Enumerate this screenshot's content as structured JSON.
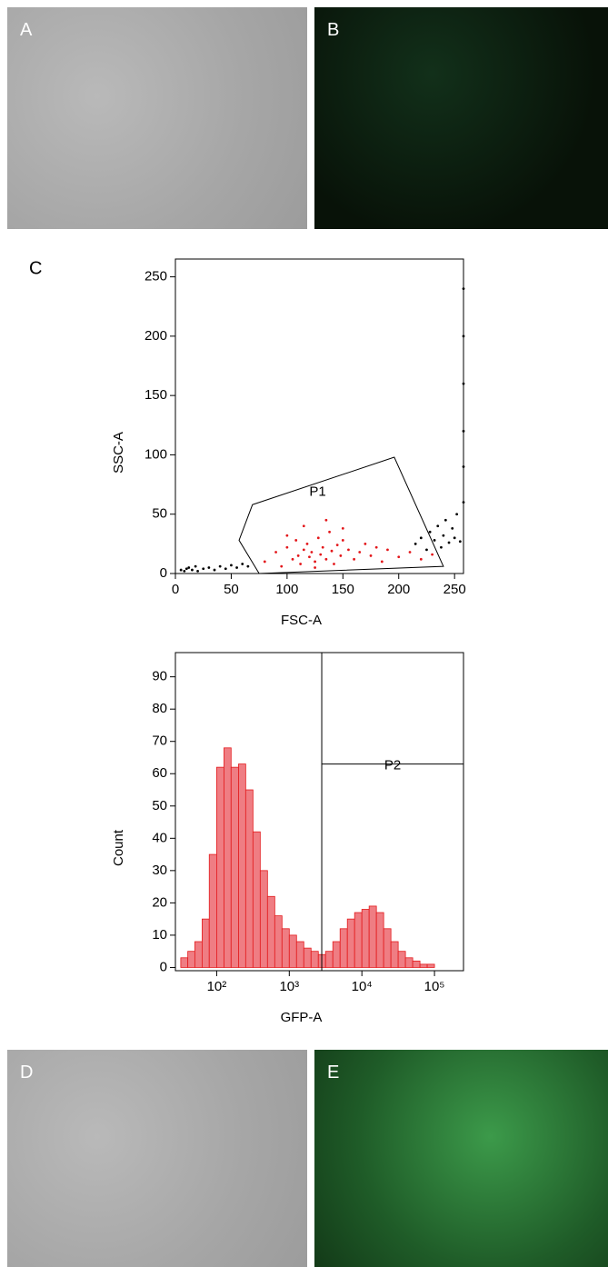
{
  "panel_labels": [
    "A",
    "B",
    "C",
    "D",
    "E"
  ],
  "chart_data": [
    {
      "type": "scatter",
      "x_label": "FSC-A",
      "y_label": "SSC-A",
      "xlim": [
        0,
        258
      ],
      "ylim": [
        0,
        265
      ],
      "xticks": [
        0,
        50,
        100,
        150,
        200,
        250
      ],
      "yticks": [
        0,
        50,
        100,
        150,
        200,
        250
      ],
      "gates": [
        {
          "name": "P1",
          "polygon": [
            [
              69,
              58
            ],
            [
              196,
              98
            ],
            [
              240,
              6
            ],
            [
              75,
              0
            ],
            [
              57,
              28
            ]
          ]
        }
      ],
      "series": [
        {
          "color": "#e3161a",
          "x": [
            80,
            90,
            95,
            100,
            105,
            108,
            110,
            112,
            115,
            118,
            120,
            122,
            125,
            128,
            130,
            132,
            135,
            138,
            140,
            142,
            145,
            148,
            150,
            155,
            160,
            165,
            170,
            175,
            180,
            185,
            190,
            200,
            210,
            220,
            230,
            115,
            125,
            135,
            100,
            150
          ],
          "y": [
            10,
            18,
            6,
            22,
            12,
            28,
            15,
            8,
            20,
            25,
            14,
            18,
            10,
            30,
            16,
            22,
            12,
            35,
            19,
            8,
            24,
            15,
            28,
            20,
            12,
            18,
            25,
            15,
            22,
            10,
            20,
            14,
            18,
            12,
            16,
            40,
            5,
            45,
            32,
            38
          ]
        },
        {
          "color": "#000000",
          "x": [
            5,
            8,
            10,
            12,
            15,
            18,
            20,
            25,
            30,
            35,
            40,
            45,
            50,
            55,
            60,
            65,
            215,
            220,
            225,
            228,
            232,
            235,
            238,
            240,
            242,
            245,
            248,
            250,
            252,
            255,
            258,
            258,
            258,
            258,
            258,
            258
          ],
          "y": [
            3,
            2,
            4,
            5,
            3,
            6,
            2,
            4,
            5,
            3,
            6,
            4,
            7,
            5,
            8,
            6,
            25,
            30,
            20,
            35,
            28,
            40,
            22,
            32,
            45,
            26,
            38,
            30,
            50,
            27,
            60,
            90,
            120,
            160,
            200,
            240
          ]
        }
      ]
    },
    {
      "type": "histogram",
      "x_label": "GFP-A",
      "y_label": "Count",
      "log_x": true,
      "xlim": [
        27,
        251000
      ],
      "ylim": [
        -1,
        97.5
      ],
      "xticks": [
        {
          "value": 100,
          "label": "10²"
        },
        {
          "value": 1000,
          "label": "10³"
        },
        {
          "value": 10000,
          "label": "10⁴"
        },
        {
          "value": 100000,
          "label": "10⁵"
        }
      ],
      "yticks": [
        0,
        10,
        20,
        30,
        40,
        50,
        60,
        70,
        80,
        90
      ],
      "color": "#ef7d83",
      "edge_color": "#e31a1c",
      "gates": [
        {
          "name": "P2",
          "x": [
            2800,
            251000
          ],
          "y": 63
        }
      ],
      "bins": [
        32,
        40,
        50,
        63,
        79,
        100,
        126,
        158,
        200,
        251,
        316,
        398,
        501,
        631,
        794,
        1000,
        1259,
        1585,
        1995,
        2512,
        3162,
        3981,
        5012,
        6310,
        7943,
        10000,
        12589,
        15849,
        19953,
        25119,
        31623,
        39811,
        50119,
        63096,
        79433,
        100000,
        125893,
        158489
      ],
      "values": [
        3,
        5,
        8,
        15,
        35,
        62,
        68,
        62,
        63,
        55,
        42,
        30,
        22,
        16,
        12,
        10,
        8,
        6,
        5,
        4,
        5,
        8,
        12,
        15,
        17,
        18,
        19,
        17,
        12,
        8,
        5,
        3,
        2,
        1,
        1,
        0,
        0
      ]
    }
  ]
}
